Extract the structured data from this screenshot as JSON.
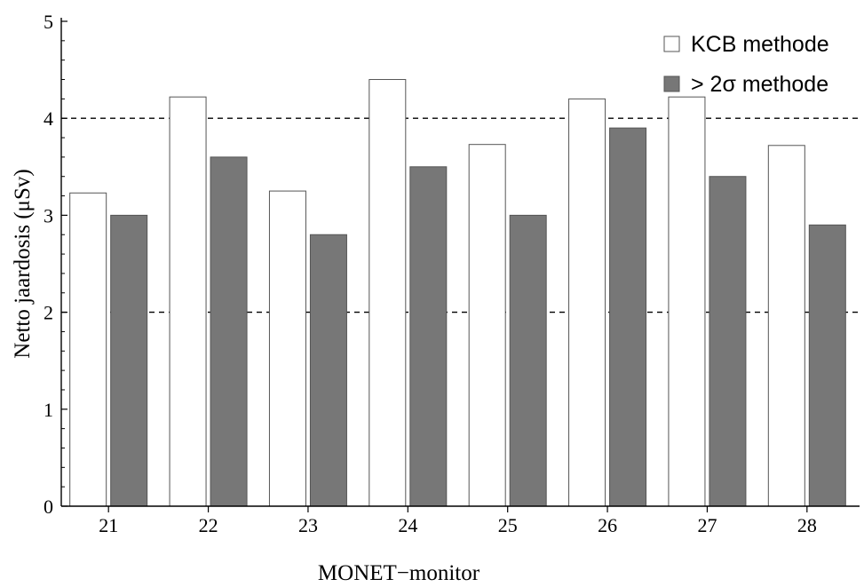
{
  "chart_data": {
    "type": "bar",
    "categories": [
      "21",
      "22",
      "23",
      "24",
      "25",
      "26",
      "27",
      "28"
    ],
    "series": [
      {
        "name": "KCB methode",
        "values": [
          3.23,
          4.22,
          3.25,
          4.4,
          3.73,
          4.2,
          4.22,
          3.72
        ],
        "color": "#ffffff",
        "stroke": "#555555"
      },
      {
        "name": "> 2σ methode",
        "values": [
          3.0,
          3.6,
          2.8,
          3.5,
          3.0,
          3.9,
          3.4,
          2.9
        ],
        "color": "#777777",
        "stroke": "#555555"
      }
    ],
    "xlabel": "MONET−monitor",
    "ylabel": "Netto jaardosis (μSv)",
    "ylim": [
      0,
      5
    ],
    "yticks": [
      "0",
      "1",
      "2",
      "3",
      "4",
      "5"
    ],
    "reference_lines": [
      2,
      4
    ],
    "grid": false,
    "legend_position": "top-right"
  }
}
